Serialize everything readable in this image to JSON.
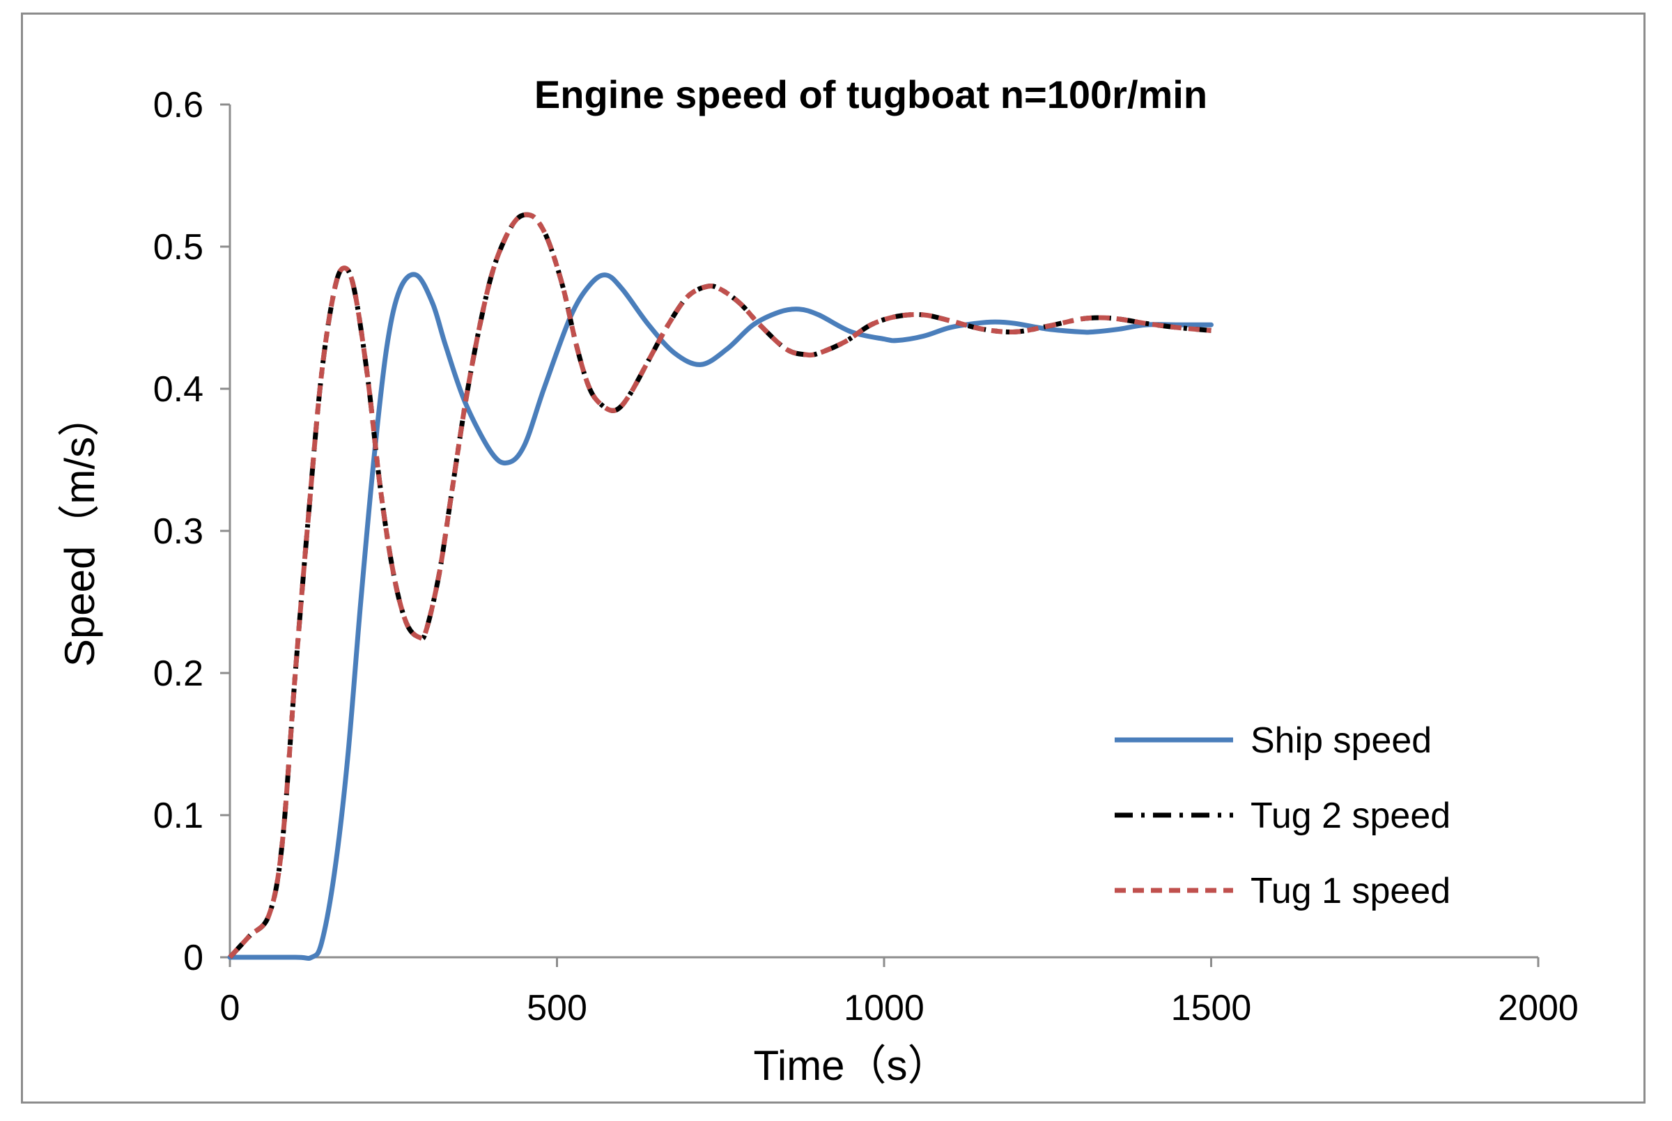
{
  "chart_data": {
    "type": "line",
    "title": "Engine speed of tugboat n=100r/min",
    "xlabel": "Time（s）",
    "ylabel": "Speed（m/s）",
    "xlim": [
      0,
      2000
    ],
    "ylim": [
      0,
      0.6
    ],
    "x_ticks": [
      0,
      500,
      1000,
      1500,
      2000
    ],
    "x_tick_labels": [
      "0",
      "500",
      "1000",
      "1500",
      "2000"
    ],
    "y_ticks": [
      0,
      0.1,
      0.2,
      0.3,
      0.4,
      0.5,
      0.6
    ],
    "y_tick_labels": [
      "0",
      "0.1",
      "0.2",
      "0.3",
      "0.4",
      "0.5",
      "0.6"
    ],
    "grid": false,
    "legend_position": "bottom-right",
    "series": [
      {
        "name": "Ship speed",
        "color": "#4a7ebb",
        "style": "solid",
        "x": [
          0,
          100,
          125,
          140,
          160,
          180,
          200,
          220,
          240,
          260,
          285,
          310,
          330,
          360,
          400,
          425,
          450,
          480,
          520,
          550,
          575,
          600,
          640,
          680,
          720,
          760,
          800,
          840,
          870,
          900,
          950,
          1000,
          1020,
          1060,
          1100,
          1140,
          1170,
          1200,
          1250,
          1300,
          1320,
          1360,
          1400,
          1450,
          1500
        ],
        "y": [
          0,
          0,
          0,
          0.01,
          0.06,
          0.14,
          0.25,
          0.35,
          0.43,
          0.47,
          0.48,
          0.46,
          0.43,
          0.39,
          0.355,
          0.348,
          0.36,
          0.4,
          0.45,
          0.473,
          0.48,
          0.47,
          0.445,
          0.425,
          0.417,
          0.428,
          0.445,
          0.454,
          0.456,
          0.452,
          0.44,
          0.435,
          0.434,
          0.437,
          0.443,
          0.446,
          0.447,
          0.446,
          0.442,
          0.44,
          0.44,
          0.442,
          0.445,
          0.445,
          0.445
        ]
      },
      {
        "name": "Tug 2 speed",
        "color": "#000000",
        "style": "dash-dot",
        "x": [
          0,
          30,
          60,
          80,
          100,
          120,
          140,
          160,
          175,
          190,
          210,
          230,
          250,
          270,
          290,
          300,
          320,
          340,
          360,
          380,
          400,
          420,
          440,
          460,
          475,
          490,
          510,
          530,
          550,
          570,
          590,
          610,
          640,
          670,
          700,
          730,
          750,
          780,
          810,
          850,
          880,
          900,
          940,
          980,
          1020,
          1060,
          1100,
          1150,
          1200,
          1250,
          1300,
          1330,
          1360,
          1400,
          1450,
          1500
        ],
        "y": [
          0,
          0.015,
          0.03,
          0.08,
          0.2,
          0.31,
          0.41,
          0.47,
          0.485,
          0.47,
          0.41,
          0.33,
          0.27,
          0.235,
          0.225,
          0.23,
          0.27,
          0.33,
          0.39,
          0.44,
          0.48,
          0.505,
          0.52,
          0.522,
          0.515,
          0.5,
          0.47,
          0.43,
          0.4,
          0.388,
          0.385,
          0.395,
          0.42,
          0.445,
          0.465,
          0.472,
          0.47,
          0.46,
          0.445,
          0.428,
          0.424,
          0.425,
          0.433,
          0.445,
          0.451,
          0.452,
          0.448,
          0.442,
          0.44,
          0.444,
          0.449,
          0.45,
          0.449,
          0.446,
          0.443,
          0.441
        ]
      },
      {
        "name": "Tug 1 speed",
        "color": "#c0504d",
        "style": "dashed",
        "x": [
          0,
          30,
          60,
          80,
          100,
          120,
          140,
          160,
          175,
          190,
          210,
          230,
          250,
          270,
          290,
          300,
          320,
          340,
          360,
          380,
          400,
          420,
          440,
          460,
          475,
          490,
          510,
          530,
          550,
          570,
          590,
          610,
          640,
          670,
          700,
          730,
          750,
          780,
          810,
          850,
          880,
          900,
          940,
          980,
          1020,
          1060,
          1100,
          1150,
          1200,
          1250,
          1300,
          1330,
          1360,
          1400,
          1450,
          1500
        ],
        "y": [
          0,
          0.015,
          0.03,
          0.08,
          0.2,
          0.31,
          0.41,
          0.47,
          0.485,
          0.47,
          0.41,
          0.33,
          0.27,
          0.235,
          0.225,
          0.23,
          0.27,
          0.33,
          0.39,
          0.44,
          0.48,
          0.505,
          0.52,
          0.522,
          0.515,
          0.5,
          0.47,
          0.43,
          0.4,
          0.388,
          0.385,
          0.395,
          0.42,
          0.445,
          0.465,
          0.472,
          0.47,
          0.46,
          0.445,
          0.428,
          0.424,
          0.425,
          0.433,
          0.445,
          0.451,
          0.452,
          0.448,
          0.442,
          0.44,
          0.444,
          0.449,
          0.45,
          0.449,
          0.446,
          0.443,
          0.441
        ]
      }
    ]
  }
}
